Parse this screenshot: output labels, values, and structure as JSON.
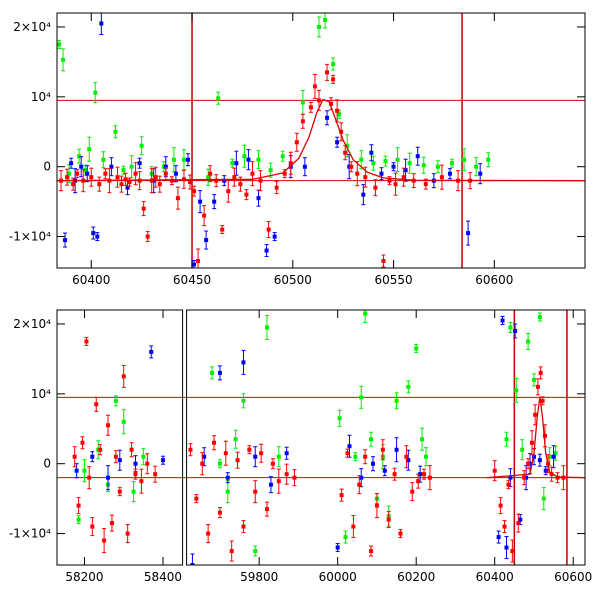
{
  "chart_data": [
    {
      "type": "scatter",
      "panel": "top",
      "title": "",
      "xlabel": "",
      "ylabel": "",
      "xlim": [
        60383,
        60645
      ],
      "ylim": [
        -14500,
        22000
      ],
      "grid": false,
      "x_ticks": [
        {
          "value": 60400,
          "label": "60400"
        },
        {
          "value": 60450,
          "label": "60450"
        },
        {
          "value": 60500,
          "label": "60500"
        },
        {
          "value": 60550,
          "label": "60550"
        },
        {
          "value": 60600,
          "label": "60600"
        }
      ],
      "y_ticks": [
        {
          "value": 20000,
          "label": "2×10⁴"
        },
        {
          "value": 10000,
          "label": "10⁴"
        },
        {
          "value": 0,
          "label": "0"
        },
        {
          "value": -10000,
          "label": "-1×10⁴"
        }
      ],
      "hlines": [
        9500,
        -2000
      ],
      "vlines": [
        60450,
        60584
      ],
      "model_curve": {
        "color": "#e00000",
        "x": [
          60383,
          60480,
          60495,
          60503,
          60508,
          60512,
          60515,
          60518,
          60521,
          60525,
          60530,
          60537,
          60545,
          60560,
          60645
        ],
        "y": [
          -2000,
          -1800,
          -900,
          1200,
          4200,
          7800,
          9600,
          9300,
          7000,
          3800,
          1000,
          -800,
          -1600,
          -1950,
          -2000
        ]
      },
      "series": [
        {
          "color": "#00f000",
          "x": [
            60384,
            60386,
            60389,
            60394,
            60397,
            60399,
            60402,
            60406,
            60412,
            60416,
            60420,
            60425,
            60430,
            60436,
            60441,
            60446,
            60458,
            60463,
            60470,
            60476,
            60483,
            60489,
            60495,
            60505,
            60513,
            60516,
            60520,
            60523,
            60527,
            60534,
            60540,
            60546,
            60552,
            60558,
            60565,
            60572,
            60579,
            60585,
            60591,
            60597
          ],
          "y": [
            17500,
            15300,
            -1000,
            1500,
            -500,
            2500,
            10600,
            1000,
            5000,
            -500,
            0,
            3000,
            -1000,
            0,
            1000,
            1000,
            -1500,
            9800,
            500,
            1500,
            1000,
            -500,
            1500,
            9200,
            20000,
            21000,
            14700,
            7500,
            3000,
            1000,
            500,
            800,
            1000,
            500,
            200,
            0,
            500,
            1000,
            0,
            1000
          ]
        },
        {
          "color": "#0000ff",
          "x": [
            60387,
            60390,
            60392,
            60395,
            60398,
            60401,
            60403,
            60405,
            60410,
            60418,
            60424,
            60431,
            60437,
            60442,
            60448,
            60451,
            60454,
            60457,
            60461,
            60466,
            60472,
            60478,
            60483,
            60487,
            60491,
            60499,
            60506,
            60517,
            60522,
            60528,
            60535,
            60539,
            60544,
            60550,
            60556,
            60562,
            60570,
            60578,
            60587,
            60593
          ],
          "y": [
            -10500,
            500,
            -2000,
            0,
            -1000,
            -9500,
            -10000,
            20500,
            0,
            -3000,
            500,
            -2000,
            0,
            -1000,
            1000,
            -14000,
            -5000,
            -10500,
            -5000,
            -2000,
            500,
            1000,
            -4500,
            -12000,
            -10000,
            0,
            0,
            7000,
            3500,
            0,
            -4000,
            2000,
            -1000,
            0,
            -500,
            1500,
            -2000,
            -1000,
            -9500,
            -1000
          ]
        },
        {
          "color": "#ff0000",
          "x": [
            60385,
            60388,
            60391,
            60393,
            60396,
            60400,
            60404,
            60407,
            60409,
            60413,
            60415,
            60417,
            60419,
            60422,
            60424,
            60426,
            60428,
            60430,
            60432,
            60434,
            60437,
            60440,
            60443,
            60446,
            60449,
            60451,
            60453,
            60456,
            60459,
            60462,
            60465,
            60468,
            60471,
            60474,
            60477,
            60480,
            60484,
            60488,
            60492,
            60496,
            60499,
            60502,
            60505,
            60509,
            60511,
            60513,
            60517,
            60519,
            60520,
            60522,
            60524,
            60526,
            60529,
            60532,
            60536,
            60541,
            60545,
            60548,
            60551,
            60555,
            60560,
            60566,
            60574,
            60582,
            60588
          ],
          "y": [
            -2000,
            -1500,
            -2500,
            -1000,
            -2000,
            -1500,
            -2500,
            -1000,
            -2000,
            -1500,
            -2500,
            -1800,
            -2200,
            -1000,
            -2000,
            -6000,
            -10000,
            -2000,
            -1500,
            -2500,
            -1000,
            -2000,
            -4500,
            -1800,
            -2200,
            -3500,
            -13500,
            -7000,
            -1000,
            -2000,
            -9000,
            -3500,
            -1500,
            -2500,
            -4000,
            -1000,
            -2000,
            -9000,
            -3000,
            -1000,
            500,
            3500,
            6500,
            8500,
            11500,
            9500,
            13500,
            9000,
            12500,
            8000,
            5000,
            2000,
            0,
            -1000,
            -1500,
            -3000,
            -13500,
            -2000,
            -2500,
            -1500,
            -2000,
            -2500,
            -1500,
            -2000,
            -2000
          ]
        }
      ]
    },
    {
      "type": "scatter",
      "panel": "bottom",
      "title": "",
      "xlabel": "",
      "ylabel": "",
      "xlim": [
        58130,
        60630
      ],
      "ylim": [
        -14500,
        22000
      ],
      "grid": false,
      "axis_break_x": [
        58455,
        59610
      ],
      "x_ticks": [
        {
          "value": 58200,
          "label": "58200"
        },
        {
          "value": 58400,
          "label": "58400"
        },
        {
          "value": 59800,
          "label": "59800"
        },
        {
          "value": 60000,
          "label": "60000"
        },
        {
          "value": 60200,
          "label": "60200"
        },
        {
          "value": 60400,
          "label": "60400"
        },
        {
          "value": 60600,
          "label": "60600"
        }
      ],
      "y_ticks": [
        {
          "value": 20000,
          "label": "2×10⁴"
        },
        {
          "value": 10000,
          "label": "10⁴"
        },
        {
          "value": 0,
          "label": "0"
        },
        {
          "value": -10000,
          "label": "-1×10⁴"
        }
      ],
      "hlines": [
        9500,
        -2000
      ],
      "vlines": [
        60450,
        60584
      ],
      "model_curve": {
        "color": "#e00000",
        "x": [
          60380,
          60490,
          60500,
          60508,
          60515,
          60522,
          60530,
          60540,
          60560,
          60630
        ],
        "y": [
          -2000,
          -1500,
          1500,
          6500,
          9600,
          6500,
          1500,
          -1200,
          -1900,
          -2000
        ]
      },
      "series": [
        {
          "color": "#00f000",
          "x": [
            58185,
            58200,
            58235,
            58260,
            58280,
            58300,
            58325,
            58350,
            59680,
            59700,
            59720,
            59740,
            59760,
            59790,
            59820,
            59850,
            60005,
            60020,
            60045,
            60060,
            60070,
            60085,
            60100,
            60115,
            60130,
            60150,
            60180,
            60200,
            60215,
            60225,
            60430,
            60440,
            60455,
            60470,
            60485,
            60500,
            60515,
            60525,
            60540,
            60555
          ],
          "y": [
            -8000,
            -1000,
            2000,
            -3000,
            9000,
            6000,
            -4000,
            1000,
            13000,
            0,
            -4000,
            3500,
            9000,
            -12500,
            19500,
            1000,
            6500,
            -10500,
            1000,
            9500,
            21500,
            3500,
            -5000,
            1000,
            -7500,
            9000,
            11000,
            16500,
            3500,
            1000,
            3500,
            19500,
            10500,
            2000,
            17500,
            12000,
            21000,
            -5000,
            1000,
            1500
          ]
        },
        {
          "color": "#0000ff",
          "x": [
            58180,
            58220,
            58260,
            58290,
            58330,
            58370,
            58400,
            59630,
            59660,
            59700,
            59720,
            59760,
            59790,
            59830,
            59870,
            60000,
            60030,
            60060,
            60090,
            60120,
            60150,
            60180,
            60210,
            60410,
            60420,
            60430,
            60440,
            60452,
            60465,
            60480,
            60490,
            60500,
            60515,
            60530,
            60550
          ],
          "y": [
            -1000,
            1000,
            -2000,
            500,
            0,
            16000,
            500,
            -14500,
            1000,
            13000,
            -2000,
            14500,
            1000,
            -3000,
            1500,
            -12000,
            2500,
            -2000,
            0,
            -1000,
            2000,
            500,
            -1500,
            -10500,
            20500,
            -12000,
            -2000,
            19000,
            -8000,
            -2000,
            0,
            1000,
            500,
            -1000,
            1000
          ]
        },
        {
          "color": "#ff0000",
          "x": [
            58175,
            58185,
            58195,
            58205,
            58212,
            58220,
            58230,
            58240,
            58250,
            58260,
            58270,
            58280,
            58290,
            58300,
            58310,
            58320,
            58330,
            58345,
            58360,
            58380,
            59625,
            59640,
            59655,
            59670,
            59685,
            59700,
            59715,
            59730,
            59745,
            59760,
            59775,
            59790,
            59805,
            59820,
            59835,
            59850,
            59870,
            59890,
            60010,
            60025,
            60040,
            60055,
            60070,
            60085,
            60100,
            60115,
            60130,
            60145,
            60160,
            60175,
            60190,
            60205,
            60220,
            60235,
            60400,
            60415,
            60425,
            60435,
            60445,
            60460,
            60475,
            60485,
            60495,
            60503,
            60510,
            60517,
            60522,
            60528,
            60536,
            60545,
            60560,
            60575
          ],
          "y": [
            1000,
            -6000,
            3000,
            17500,
            -2000,
            -9000,
            8500,
            2000,
            -11000,
            5500,
            -8500,
            1000,
            -4000,
            12500,
            -10000,
            2000,
            -1500,
            -2500,
            0,
            -1500,
            2000,
            -5000,
            0,
            -10000,
            3000,
            -7000,
            1500,
            -12500,
            500,
            -9000,
            2000,
            -4000,
            1500,
            -6500,
            0,
            -2500,
            -1500,
            -2000,
            -4500,
            1500,
            -9000,
            -3000,
            1000,
            -12500,
            -6000,
            2000,
            -8000,
            -1500,
            -10000,
            1000,
            -4000,
            -2500,
            -1500,
            -2000,
            -1000,
            -6000,
            -9000,
            -3000,
            -12500,
            -8500,
            -2000,
            0,
            3000,
            7000,
            11000,
            13000,
            9000,
            4000,
            0,
            -1500,
            -2000,
            -2000
          ]
        }
      ]
    }
  ]
}
